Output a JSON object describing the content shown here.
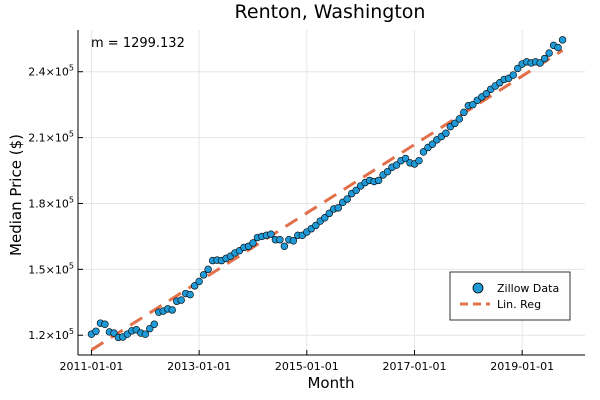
{
  "chart_data": {
    "type": "scatter",
    "title": "Renton, Washington",
    "xlabel": "Month",
    "ylabel": "Median Price ($)",
    "annotation": "m = 1299.132",
    "x_tick_labels": [
      "2011-01-01",
      "2013-01-01",
      "2015-01-01",
      "2017-01-01",
      "2019-01-01"
    ],
    "x_tick_months": [
      0,
      24,
      48,
      72,
      96
    ],
    "y_tick_values": [
      120000,
      150000,
      180000,
      210000,
      240000
    ],
    "y_tick_labels": [
      {
        "mantissa": "1.2",
        "exp": "5"
      },
      {
        "mantissa": "1.5",
        "exp": "5"
      },
      {
        "mantissa": "1.8",
        "exp": "5"
      },
      {
        "mantissa": "2.1",
        "exp": "5"
      },
      {
        "mantissa": "2.4",
        "exp": "5"
      }
    ],
    "xlim_months": [
      -3,
      110
    ],
    "ylim": [
      111000,
      259000
    ],
    "grid": true,
    "legend_position": "bottom-right",
    "colors": {
      "scatter": "#1f9ad6",
      "scatter_edge": "#000000",
      "line": "#e2704a"
    },
    "series": [
      {
        "name": "Zillow Data",
        "kind": "scatter",
        "x_start": "2011-01-01",
        "interval": "month",
        "values": [
          120500,
          121800,
          125500,
          125000,
          121500,
          121000,
          119000,
          119200,
          120500,
          122000,
          122500,
          121000,
          120500,
          123000,
          125000,
          130500,
          131000,
          132000,
          131500,
          135500,
          136000,
          139000,
          138500,
          142500,
          144500,
          147500,
          150000,
          154000,
          154200,
          154000,
          155000,
          156000,
          157500,
          158500,
          160000,
          160500,
          162000,
          164500,
          165000,
          165500,
          166000,
          163500,
          163500,
          160500,
          163500,
          163000,
          165500,
          165500,
          167000,
          168500,
          170000,
          172000,
          173500,
          175500,
          177500,
          178000,
          180500,
          182000,
          184500,
          186000,
          188000,
          189500,
          190500,
          190000,
          190500,
          193000,
          194500,
          196500,
          197500,
          199500,
          200500,
          198500,
          198000,
          199500,
          203500,
          205500,
          207000,
          209000,
          210500,
          212000,
          215000,
          216500,
          218500,
          221500,
          224500,
          225000,
          227000,
          228500,
          230000,
          232000,
          233500,
          235000,
          236500,
          237000,
          238500,
          241500,
          243500,
          244500,
          244000,
          244500,
          244000,
          246000,
          248500,
          252000,
          251000,
          254500
        ]
      },
      {
        "name": "Lin. Reg",
        "kind": "line",
        "slope_per_month": 1299.132,
        "intercept": 113300
      }
    ]
  }
}
